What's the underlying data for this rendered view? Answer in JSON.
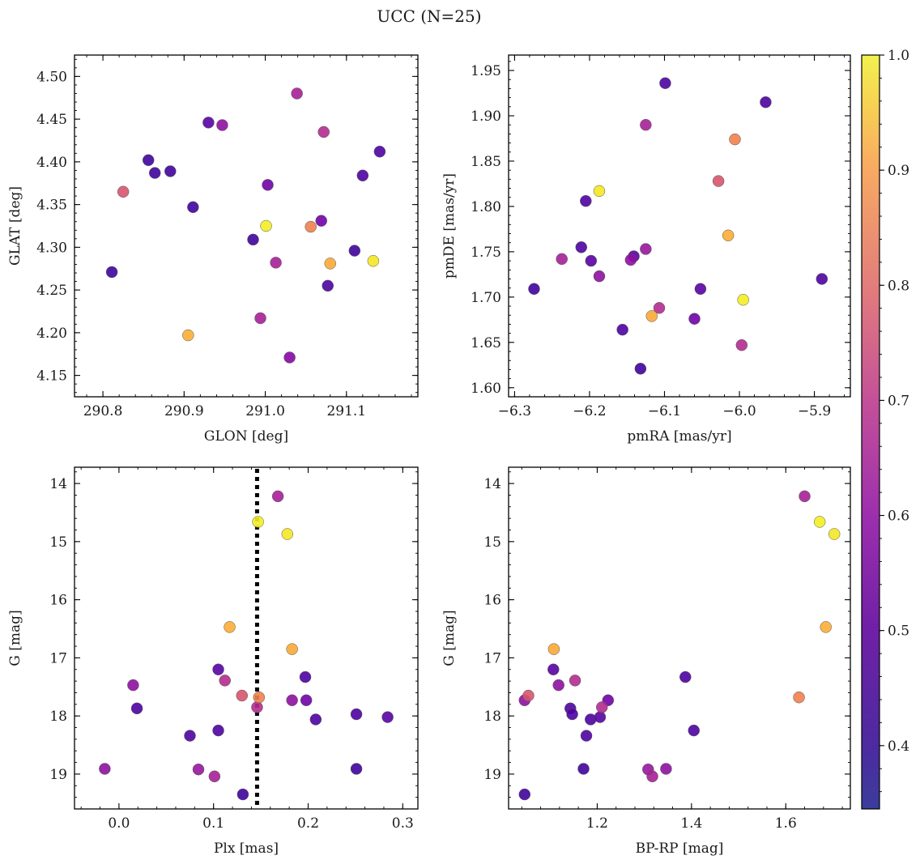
{
  "figure": {
    "title": "UCC (N=25)"
  },
  "colorbar": {
    "colormap": "plasma",
    "range": [
      0.345,
      1.0
    ],
    "ticks": [
      0.4,
      0.5,
      0.6,
      0.7,
      0.8,
      0.9,
      1.0
    ],
    "tick_labels": [
      "0.4",
      "0.5",
      "0.6",
      "0.7",
      "0.8",
      "0.9",
      "1.0"
    ]
  },
  "chart_data": [
    {
      "type": "scatter",
      "id": "glon-glat",
      "xlabel": "GLON [deg]",
      "ylabel": "GLAT [deg]",
      "xlim": [
        290.765,
        291.188
      ],
      "ylim": [
        4.125,
        4.525
      ],
      "inverted_y": false,
      "xticks": [
        290.8,
        290.9,
        291.0,
        291.1
      ],
      "xtick_labels": [
        "290.8",
        "290.9",
        "291.0",
        "291.1"
      ],
      "yticks": [
        4.15,
        4.2,
        4.25,
        4.3,
        4.35,
        4.4,
        4.45,
        4.5
      ],
      "ytick_labels": [
        "4.15",
        "4.20",
        "4.25",
        "4.30",
        "4.35",
        "4.40",
        "4.45",
        "4.50"
      ],
      "points": [
        {
          "x": 290.811,
          "y": 4.271,
          "c": 0.36
        },
        {
          "x": 290.825,
          "y": 4.365,
          "c": 0.68
        },
        {
          "x": 290.856,
          "y": 4.402,
          "c": 0.36
        },
        {
          "x": 290.864,
          "y": 4.387,
          "c": 0.36
        },
        {
          "x": 290.883,
          "y": 4.389,
          "c": 0.36
        },
        {
          "x": 290.905,
          "y": 4.197,
          "c": 0.87
        },
        {
          "x": 290.911,
          "y": 4.347,
          "c": 0.36
        },
        {
          "x": 290.93,
          "y": 4.446,
          "c": 0.4
        },
        {
          "x": 290.947,
          "y": 4.443,
          "c": 0.5
        },
        {
          "x": 290.985,
          "y": 4.309,
          "c": 0.36
        },
        {
          "x": 290.994,
          "y": 4.217,
          "c": 0.55
        },
        {
          "x": 291.001,
          "y": 4.325,
          "c": 0.98
        },
        {
          "x": 291.003,
          "y": 4.373,
          "c": 0.44
        },
        {
          "x": 291.013,
          "y": 4.282,
          "c": 0.55
        },
        {
          "x": 291.03,
          "y": 4.171,
          "c": 0.48
        },
        {
          "x": 291.039,
          "y": 4.48,
          "c": 0.55
        },
        {
          "x": 291.056,
          "y": 4.324,
          "c": 0.78
        },
        {
          "x": 291.069,
          "y": 4.331,
          "c": 0.44
        },
        {
          "x": 291.072,
          "y": 4.435,
          "c": 0.58
        },
        {
          "x": 291.077,
          "y": 4.255,
          "c": 0.38
        },
        {
          "x": 291.08,
          "y": 4.281,
          "c": 0.86
        },
        {
          "x": 291.11,
          "y": 4.296,
          "c": 0.36
        },
        {
          "x": 291.12,
          "y": 4.384,
          "c": 0.38
        },
        {
          "x": 291.133,
          "y": 4.284,
          "c": 0.97
        },
        {
          "x": 291.141,
          "y": 4.412,
          "c": 0.38
        }
      ]
    },
    {
      "type": "scatter",
      "id": "pmra-pmde",
      "xlabel": "pmRA [mas/yr]",
      "ylabel": "pmDE [mas/yr]",
      "xlim": [
        -6.308,
        -5.852
      ],
      "ylim": [
        1.59,
        1.967
      ],
      "inverted_y": false,
      "xticks": [
        -6.3,
        -6.2,
        -6.1,
        -6.0,
        -5.9
      ],
      "xtick_labels": [
        "−6.3",
        "−6.2",
        "−6.1",
        "−6.0",
        "−5.9"
      ],
      "yticks": [
        1.6,
        1.65,
        1.7,
        1.75,
        1.8,
        1.85,
        1.9,
        1.95
      ],
      "ytick_labels": [
        "1.60",
        "1.65",
        "1.70",
        "1.75",
        "1.80",
        "1.85",
        "1.90",
        "1.95"
      ],
      "points": [
        {
          "x": -6.274,
          "y": 1.709,
          "c": 0.36
        },
        {
          "x": -6.237,
          "y": 1.742,
          "c": 0.55
        },
        {
          "x": -6.211,
          "y": 1.755,
          "c": 0.38
        },
        {
          "x": -6.205,
          "y": 1.806,
          "c": 0.38
        },
        {
          "x": -6.198,
          "y": 1.74,
          "c": 0.4
        },
        {
          "x": -6.187,
          "y": 1.723,
          "c": 0.5
        },
        {
          "x": -6.187,
          "y": 1.817,
          "c": 0.97
        },
        {
          "x": -6.156,
          "y": 1.664,
          "c": 0.38
        },
        {
          "x": -6.145,
          "y": 1.741,
          "c": 0.5
        },
        {
          "x": -6.141,
          "y": 1.745,
          "c": 0.4
        },
        {
          "x": -6.132,
          "y": 1.621,
          "c": 0.36
        },
        {
          "x": -6.125,
          "y": 1.753,
          "c": 0.52
        },
        {
          "x": -6.125,
          "y": 1.89,
          "c": 0.55
        },
        {
          "x": -6.117,
          "y": 1.679,
          "c": 0.86
        },
        {
          "x": -6.107,
          "y": 1.688,
          "c": 0.58
        },
        {
          "x": -6.099,
          "y": 1.936,
          "c": 0.38
        },
        {
          "x": -6.06,
          "y": 1.676,
          "c": 0.44
        },
        {
          "x": -6.052,
          "y": 1.709,
          "c": 0.4
        },
        {
          "x": -6.028,
          "y": 1.828,
          "c": 0.68
        },
        {
          "x": -6.015,
          "y": 1.768,
          "c": 0.87
        },
        {
          "x": -6.006,
          "y": 1.874,
          "c": 0.78
        },
        {
          "x": -5.997,
          "y": 1.647,
          "c": 0.58
        },
        {
          "x": -5.995,
          "y": 1.697,
          "c": 0.98
        },
        {
          "x": -5.965,
          "y": 1.915,
          "c": 0.38
        },
        {
          "x": -5.89,
          "y": 1.72,
          "c": 0.38
        }
      ]
    },
    {
      "type": "scatter",
      "id": "plx-g",
      "xlabel": "Plx [mas]",
      "ylabel": "G [mag]",
      "xlim": [
        -0.047,
        0.316
      ],
      "ylim": [
        13.72,
        19.6
      ],
      "inverted_y": true,
      "xticks": [
        0.0,
        0.1,
        0.2,
        0.3
      ],
      "xtick_labels": [
        "0.0",
        "0.1",
        "0.2",
        "0.3"
      ],
      "yticks": [
        14,
        15,
        16,
        17,
        18,
        19
      ],
      "ytick_labels": [
        "14",
        "15",
        "16",
        "17",
        "18",
        "19"
      ],
      "vline": {
        "x": 0.146,
        "style": "dotted",
        "color": "#000000"
      },
      "points": [
        {
          "x": -0.015,
          "y": 18.91,
          "c": 0.5
        },
        {
          "x": 0.015,
          "y": 17.47,
          "c": 0.5
        },
        {
          "x": 0.019,
          "y": 17.87,
          "c": 0.38
        },
        {
          "x": 0.075,
          "y": 18.34,
          "c": 0.38
        },
        {
          "x": 0.084,
          "y": 18.92,
          "c": 0.52
        },
        {
          "x": 0.101,
          "y": 19.04,
          "c": 0.55
        },
        {
          "x": 0.105,
          "y": 17.2,
          "c": 0.4
        },
        {
          "x": 0.105,
          "y": 18.25,
          "c": 0.38
        },
        {
          "x": 0.112,
          "y": 17.39,
          "c": 0.58
        },
        {
          "x": 0.117,
          "y": 16.47,
          "c": 0.87
        },
        {
          "x": 0.13,
          "y": 17.65,
          "c": 0.68
        },
        {
          "x": 0.131,
          "y": 19.35,
          "c": 0.36
        },
        {
          "x": 0.146,
          "y": 17.85,
          "c": 0.58
        },
        {
          "x": 0.147,
          "y": 14.66,
          "c": 0.98
        },
        {
          "x": 0.148,
          "y": 17.68,
          "c": 0.78
        },
        {
          "x": 0.168,
          "y": 14.22,
          "c": 0.55
        },
        {
          "x": 0.178,
          "y": 14.87,
          "c": 0.97
        },
        {
          "x": 0.183,
          "y": 16.85,
          "c": 0.86
        },
        {
          "x": 0.183,
          "y": 17.73,
          "c": 0.5
        },
        {
          "x": 0.197,
          "y": 17.33,
          "c": 0.38
        },
        {
          "x": 0.198,
          "y": 17.73,
          "c": 0.44
        },
        {
          "x": 0.208,
          "y": 18.06,
          "c": 0.38
        },
        {
          "x": 0.251,
          "y": 17.97,
          "c": 0.38
        },
        {
          "x": 0.251,
          "y": 18.91,
          "c": 0.36
        },
        {
          "x": 0.284,
          "y": 18.02,
          "c": 0.4
        }
      ]
    },
    {
      "type": "scatter",
      "id": "bprp-g",
      "xlabel": "BP-RP [mag]",
      "ylabel": "G [mag]",
      "xlim": [
        1.012,
        1.737
      ],
      "ylim": [
        13.72,
        19.6
      ],
      "inverted_y": true,
      "xticks": [
        1.2,
        1.4,
        1.6
      ],
      "xtick_labels": [
        "1.2",
        "1.4",
        "1.6"
      ],
      "yticks": [
        14,
        15,
        16,
        17,
        18,
        19
      ],
      "ytick_labels": [
        "14",
        "15",
        "16",
        "17",
        "18",
        "19"
      ],
      "points": [
        {
          "x": 1.046,
          "y": 17.73,
          "c": 0.5
        },
        {
          "x": 1.046,
          "y": 19.35,
          "c": 0.36
        },
        {
          "x": 1.054,
          "y": 17.65,
          "c": 0.68
        },
        {
          "x": 1.107,
          "y": 17.2,
          "c": 0.4
        },
        {
          "x": 1.108,
          "y": 16.85,
          "c": 0.86
        },
        {
          "x": 1.118,
          "y": 17.47,
          "c": 0.5
        },
        {
          "x": 1.143,
          "y": 17.87,
          "c": 0.38
        },
        {
          "x": 1.147,
          "y": 17.97,
          "c": 0.38
        },
        {
          "x": 1.153,
          "y": 17.39,
          "c": 0.58
        },
        {
          "x": 1.171,
          "y": 18.91,
          "c": 0.36
        },
        {
          "x": 1.177,
          "y": 18.34,
          "c": 0.38
        },
        {
          "x": 1.186,
          "y": 18.06,
          "c": 0.38
        },
        {
          "x": 1.206,
          "y": 18.02,
          "c": 0.4
        },
        {
          "x": 1.21,
          "y": 17.85,
          "c": 0.58
        },
        {
          "x": 1.223,
          "y": 17.73,
          "c": 0.44
        },
        {
          "x": 1.308,
          "y": 18.92,
          "c": 0.52
        },
        {
          "x": 1.317,
          "y": 19.04,
          "c": 0.55
        },
        {
          "x": 1.346,
          "y": 18.91,
          "c": 0.5
        },
        {
          "x": 1.387,
          "y": 17.33,
          "c": 0.38
        },
        {
          "x": 1.405,
          "y": 18.25,
          "c": 0.38
        },
        {
          "x": 1.628,
          "y": 17.68,
          "c": 0.78
        },
        {
          "x": 1.64,
          "y": 14.22,
          "c": 0.55
        },
        {
          "x": 1.672,
          "y": 14.66,
          "c": 0.98
        },
        {
          "x": 1.685,
          "y": 16.47,
          "c": 0.87
        },
        {
          "x": 1.703,
          "y": 14.87,
          "c": 0.97
        }
      ]
    }
  ]
}
